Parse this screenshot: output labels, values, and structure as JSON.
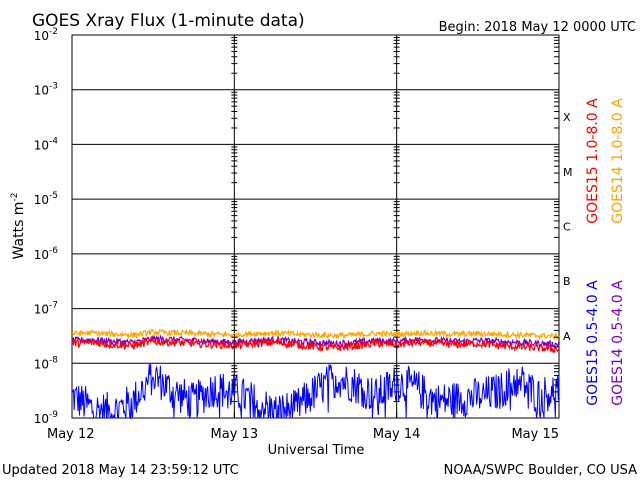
{
  "chart_data": {
    "type": "line",
    "title": "GOES Xray Flux (1-minute data)",
    "begin_label": "Begin:  2018 May 12 0000 UTC",
    "xlabel": "Universal Time",
    "ylabel_base": "Watts m",
    "ylabel_exp": "-2",
    "y_scale": "log",
    "ylim": [
      1e-09,
      0.01
    ],
    "grid": true,
    "x_ticks": [
      "May 12",
      "May 13",
      "May 14",
      "May 15"
    ],
    "y_ticks": [
      {
        "base": "10",
        "exp": "-2"
      },
      {
        "base": "10",
        "exp": "-3"
      },
      {
        "base": "10",
        "exp": "-4"
      },
      {
        "base": "10",
        "exp": "-5"
      },
      {
        "base": "10",
        "exp": "-6"
      },
      {
        "base": "10",
        "exp": "-7"
      },
      {
        "base": "10",
        "exp": "-8"
      },
      {
        "base": "10",
        "exp": "-9"
      }
    ],
    "flare_classes": [
      {
        "label": "X",
        "value": 0.0001
      },
      {
        "label": "M",
        "value": 1e-05
      },
      {
        "label": "C",
        "value": 1e-06
      },
      {
        "label": "B",
        "value": 1e-07
      },
      {
        "label": "A",
        "value": 1e-08
      }
    ],
    "series": [
      {
        "name": "GOES15 1.0-8.0 A",
        "color": "#ff0000",
        "values": [
          2.3e-08,
          2.4e-08,
          2.2e-08,
          2.1e-08,
          2.5e-08,
          2.4e-08,
          2.3e-08,
          2.2e-08,
          2.1e-08,
          2.3e-08,
          2.4e-08,
          2.2e-08,
          2e-08,
          1.9e-08,
          2.1e-08,
          2.3e-08,
          2.2e-08,
          2.4e-08,
          2.3e-08,
          2.2e-08,
          2.3e-08,
          2.1e-08,
          2e-08,
          1.9e-08,
          1.8e-08
        ]
      },
      {
        "name": "GOES14 1.0-8.0 A",
        "color": "#ffa500",
        "values": [
          3.5e-08,
          3.6e-08,
          3.4e-08,
          3.3e-08,
          3.7e-08,
          3.6e-08,
          3.5e-08,
          3.4e-08,
          3.3e-08,
          3.5e-08,
          3.6e-08,
          3.4e-08,
          3.3e-08,
          3.2e-08,
          3.3e-08,
          3.5e-08,
          3.4e-08,
          3.6e-08,
          3.5e-08,
          3.4e-08,
          3.5e-08,
          3.4e-08,
          3.3e-08,
          3.2e-08,
          3.1e-08
        ]
      },
      {
        "name": "GOES15 0.5-4.0 A",
        "color": "#0000ff",
        "values": [
          2.5e-09,
          1.5e-09,
          1.3e-09,
          2e-09,
          6e-09,
          3e-09,
          2e-09,
          3.5e-09,
          3e-09,
          2e-09,
          1.3e-09,
          1.5e-09,
          3e-09,
          5.5e-09,
          4e-09,
          2.5e-09,
          4.5e-09,
          3.5e-09,
          2e-09,
          2.2e-09,
          2.5e-09,
          3e-09,
          5e-09,
          2.5e-09,
          3.5e-09
        ]
      },
      {
        "name": "GOES14 0.5-4.0 A",
        "color": "#8000c0",
        "values": [
          2.6e-08,
          2.7e-08,
          2.5e-08,
          2.4e-08,
          2.8e-08,
          2.7e-08,
          2.6e-08,
          2.5e-08,
          2.4e-08,
          2.6e-08,
          2.7e-08,
          2.5e-08,
          2.4e-08,
          2.3e-08,
          2.4e-08,
          2.6e-08,
          2.5e-08,
          2.7e-08,
          2.6e-08,
          2.5e-08,
          2.6e-08,
          2.5e-08,
          2.4e-08,
          2.3e-08,
          2.2e-08
        ]
      }
    ]
  },
  "footer": {
    "updated": "Updated 2018 May 14 23:59:12 UTC",
    "credit": "NOAA/SWPC Boulder, CO USA"
  }
}
